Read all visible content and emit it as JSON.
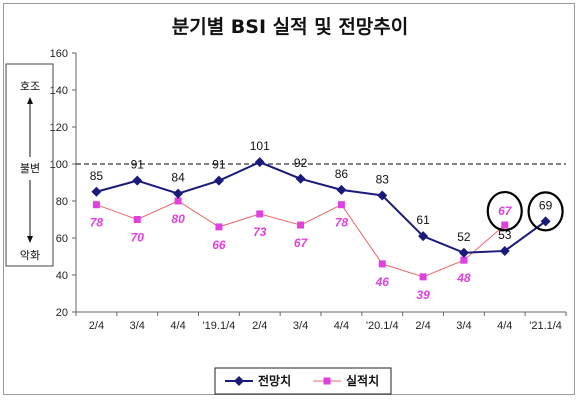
{
  "chart_data": {
    "type": "line",
    "title": "분기별 BSI 실적 및 전망추이",
    "categories": [
      "2/4",
      "3/4",
      "4/4",
      "'19.1/4",
      "2/4",
      "3/4",
      "4/4",
      "'20.1/4",
      "2/4",
      "3/4",
      "4/4",
      "'21.1/4"
    ],
    "ylim": [
      20,
      160
    ],
    "yticks": [
      20,
      40,
      60,
      80,
      100,
      120,
      140,
      160
    ],
    "reference_line": 100,
    "series": [
      {
        "name": "전망치",
        "color": "#1a1a7a",
        "marker": "diamond",
        "values": [
          85,
          91,
          84,
          91,
          101,
          92,
          86,
          83,
          61,
          52,
          53,
          69
        ]
      },
      {
        "name": "실적치",
        "color": "#e040e0",
        "line_color": "#e86a6a",
        "marker": "square",
        "values": [
          78,
          70,
          80,
          66,
          73,
          67,
          78,
          46,
          39,
          48,
          67,
          null
        ]
      }
    ],
    "side_labels": {
      "top": "호조",
      "middle": "불변",
      "bottom": "악화"
    },
    "highlights": [
      {
        "series": "실적치",
        "category_index": 10
      },
      {
        "series": "전망치",
        "category_index": 11
      }
    ],
    "legend_placement": "bottom-center"
  }
}
